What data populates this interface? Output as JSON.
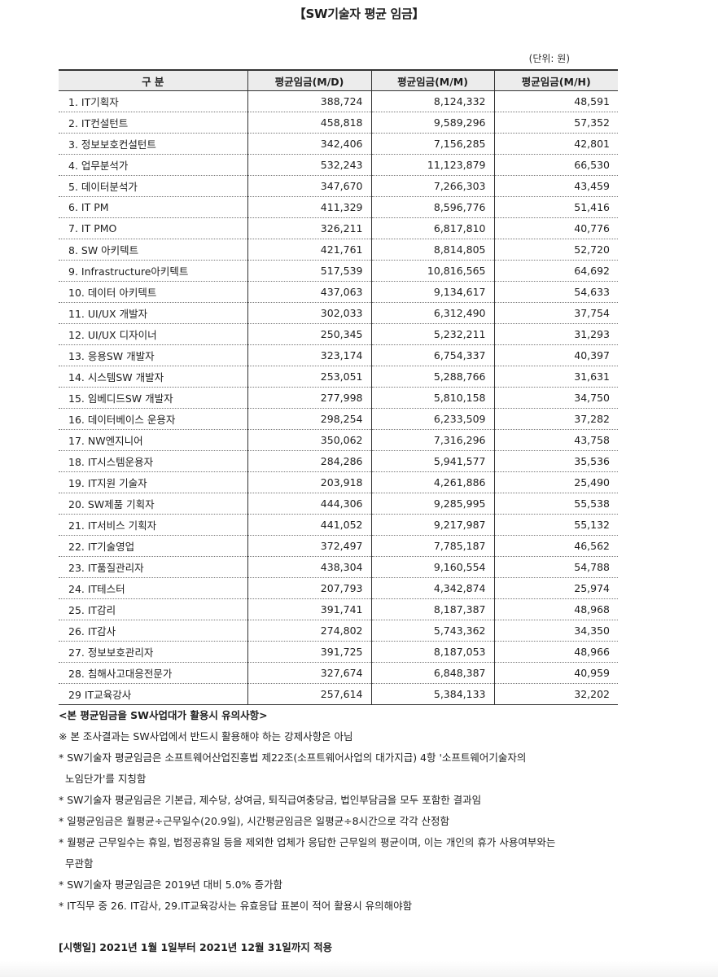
{
  "title": "【SW기술자 평균 임금】",
  "unit": "(단위: 원)",
  "table": {
    "headers": [
      "구 분",
      "평균임금(M/D)",
      "평균임금(M/M)",
      "평균임금(M/H)"
    ],
    "rows": [
      [
        "1. IT기획자",
        "388,724",
        "8,124,332",
        "48,591"
      ],
      [
        "2. IT컨설턴트",
        "458,818",
        "9,589,296",
        "57,352"
      ],
      [
        "3. 정보보호컨설턴트",
        "342,406",
        "7,156,285",
        "42,801"
      ],
      [
        "4. 업무분석가",
        "532,243",
        "11,123,879",
        "66,530"
      ],
      [
        "5. 데이터분석가",
        "347,670",
        "7,266,303",
        "43,459"
      ],
      [
        "6. IT PM",
        "411,329",
        "8,596,776",
        "51,416"
      ],
      [
        "7. IT PMO",
        "326,211",
        "6,817,810",
        "40,776"
      ],
      [
        "8. SW 아키텍트",
        "421,761",
        "8,814,805",
        "52,720"
      ],
      [
        "9. Infrastructure아키텍트",
        "517,539",
        "10,816,565",
        "64,692"
      ],
      [
        "10. 데이터 아키텍트",
        "437,063",
        "9,134,617",
        "54,633"
      ],
      [
        "11. UI/UX 개발자",
        "302,033",
        "6,312,490",
        "37,754"
      ],
      [
        "12. UI/UX 디자이너",
        "250,345",
        "5,232,211",
        "31,293"
      ],
      [
        "13. 응용SW 개발자",
        "323,174",
        "6,754,337",
        "40,397"
      ],
      [
        "14. 시스템SW 개발자",
        "253,051",
        "5,288,766",
        "31,631"
      ],
      [
        "15. 임베디드SW 개발자",
        "277,998",
        "5,810,158",
        "34,750"
      ],
      [
        "16. 데이터베이스 운용자",
        "298,254",
        "6,233,509",
        "37,282"
      ],
      [
        "17. NW엔지니어",
        "350,062",
        "7,316,296",
        "43,758"
      ],
      [
        "18. IT시스템운용자",
        "284,286",
        "5,941,577",
        "35,536"
      ],
      [
        "19. IT지원 기술자",
        "203,918",
        "4,261,886",
        "25,490"
      ],
      [
        "20. SW제품 기획자",
        "444,306",
        "9,285,995",
        "55,538"
      ],
      [
        "21. IT서비스 기획자",
        "441,052",
        "9,217,987",
        "55,132"
      ],
      [
        "22. IT기술영업",
        "372,497",
        "7,785,187",
        "46,562"
      ],
      [
        "23. IT품질관리자",
        "438,304",
        "9,160,554",
        "54,788"
      ],
      [
        "24. IT테스터",
        "207,793",
        "4,342,874",
        "25,974"
      ],
      [
        "25. IT감리",
        "391,741",
        "8,187,387",
        "48,968"
      ],
      [
        "26. IT감사",
        "274,802",
        "5,743,362",
        "34,350"
      ],
      [
        "27. 정보보호관리자",
        "391,725",
        "8,187,053",
        "48,966"
      ],
      [
        "28. 침해사고대응전문가",
        "327,674",
        "6,848,387",
        "40,959"
      ],
      [
        "29 IT교육강사",
        "257,614",
        "5,384,133",
        "32,202"
      ]
    ]
  },
  "notes": {
    "title": "<본 평균임금을 SW사업대가 활용시 유의사항>",
    "items": [
      "※ 본 조사결과는 SW사업에서 반드시 활용해야 하는 강제사항은 아님",
      "* SW기술자 평균임금은 소프트웨어산업진흥법 제22조(소프트웨어사업의 대가지급) 4항 '소프트웨어기술자의",
      "노임단가'를 지칭함",
      "* SW기술자 평균임금은 기본급, 제수당, 상여금, 퇴직급여충당금, 법인부담금을 모두 포함한 결과임",
      "* 일평균임금은 월평균÷근무일수(20.9일), 시간평균임금은 일평균÷8시간으로 각각 산정함",
      "* 월평균 근무일수는 휴일, 법정공휴일 등을 제외한 업체가 응답한 근무일의 평균이며, 이는 개인의 휴가 사용여부와는",
      "무관함",
      "* SW기술자 평균임금은 2019년 대비 5.0% 증가함",
      "* IT직무 중 26. IT감사, 29.IT교육강사는 유효응답 표본이 적어 활용시 유의해야함"
    ]
  },
  "effective_date": "[시행일] 2021년 1월 1일부터 2021년 12월 31일까지 적용"
}
